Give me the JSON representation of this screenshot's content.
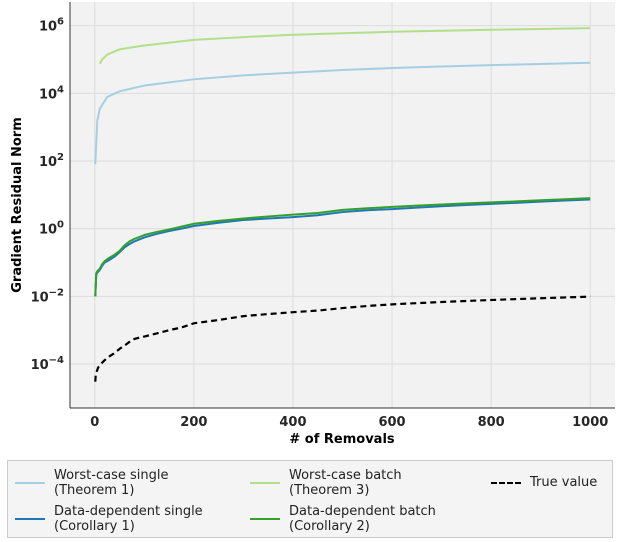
{
  "chart_data": {
    "type": "line",
    "xlabel": "# of Removals",
    "ylabel": "Gradient Residual Norm",
    "yscale": "log",
    "xlim": [
      -50,
      1050
    ],
    "ylim_log10": [
      -5.3,
      6.7
    ],
    "grid": true,
    "x_ticks": [
      "0",
      "200",
      "400",
      "600",
      "800",
      "1000"
    ],
    "y_ticks": [
      {
        "base": "10",
        "exp": "6"
      },
      {
        "base": "10",
        "exp": "4"
      },
      {
        "base": "10",
        "exp": "2"
      },
      {
        "base": "10",
        "exp": "0"
      },
      {
        "base": "10",
        "exp": "−2"
      },
      {
        "base": "10",
        "exp": "−4"
      }
    ],
    "legend_position": "bottom",
    "series": [
      {
        "name": "Worst-case single (Theorem 1)",
        "color": "#a6cee3",
        "style": "solid",
        "x": [
          1,
          5,
          10,
          25,
          50,
          100,
          200,
          300,
          400,
          500,
          600,
          700,
          800,
          900,
          1000
        ],
        "y": [
          80,
          1500,
          3500,
          7800,
          11500,
          17000,
          26000,
          34000,
          41000,
          49000,
          56000,
          62000,
          68000,
          74000,
          80000
        ]
      },
      {
        "name": "Worst-case batch (Theorem 3)",
        "color": "#b2df8a",
        "style": "solid",
        "x": [
          10,
          15,
          25,
          50,
          100,
          200,
          300,
          400,
          500,
          600,
          700,
          800,
          900,
          1000
        ],
        "y": [
          75000,
          100000,
          140000,
          200000,
          260000,
          380000,
          460000,
          540000,
          600000,
          660000,
          710000,
          760000,
          800000,
          850000
        ]
      },
      {
        "name": "Data-dependent single (Corollary 1)",
        "color": "#1f78b4",
        "style": "solid",
        "x": [
          1,
          3,
          5,
          10,
          15,
          20,
          30,
          40,
          50,
          60,
          70,
          80,
          100,
          125,
          150,
          175,
          200,
          250,
          300,
          350,
          400,
          450,
          500,
          550,
          600,
          650,
          700,
          750,
          800,
          850,
          900,
          950,
          1000
        ],
        "y": [
          0.01,
          0.045,
          0.05,
          0.06,
          0.08,
          0.1,
          0.12,
          0.15,
          0.2,
          0.28,
          0.35,
          0.42,
          0.55,
          0.7,
          0.85,
          1.0,
          1.2,
          1.5,
          1.8,
          2.0,
          2.2,
          2.5,
          3.1,
          3.5,
          3.8,
          4.2,
          4.6,
          5.0,
          5.4,
          5.8,
          6.3,
          6.8,
          7.3
        ]
      },
      {
        "name": "Data-dependent batch (Corollary 2)",
        "color": "#33a02c",
        "style": "solid",
        "x": [
          1,
          3,
          5,
          10,
          15,
          20,
          30,
          40,
          50,
          60,
          70,
          80,
          100,
          125,
          150,
          175,
          200,
          250,
          300,
          350,
          400,
          450,
          500,
          550,
          600,
          650,
          700,
          750,
          800,
          850,
          900,
          950,
          1000
        ],
        "y": [
          0.01,
          0.048,
          0.055,
          0.065,
          0.09,
          0.11,
          0.14,
          0.17,
          0.22,
          0.32,
          0.42,
          0.5,
          0.65,
          0.8,
          0.95,
          1.15,
          1.4,
          1.7,
          2.0,
          2.3,
          2.6,
          2.9,
          3.6,
          4.0,
          4.4,
          4.8,
          5.2,
          5.6,
          6.0,
          6.4,
          6.9,
          7.4,
          8.0
        ]
      },
      {
        "name": "True value",
        "color": "#000000",
        "style": "dashed",
        "x": [
          1,
          2,
          4,
          7,
          10,
          15,
          20,
          25,
          30,
          40,
          50,
          60,
          70,
          80,
          90,
          100,
          125,
          150,
          175,
          200,
          250,
          300,
          350,
          400,
          450,
          500,
          550,
          600,
          650,
          700,
          750,
          800,
          850,
          900,
          950,
          1000
        ],
        "y": [
          3e-05,
          5e-05,
          6e-05,
          8e-05,
          9e-05,
          0.00011,
          0.00013,
          0.00015,
          0.00017,
          0.00021,
          0.00028,
          0.00035,
          0.00045,
          0.00055,
          0.0006,
          0.00065,
          0.0008,
          0.001,
          0.0012,
          0.0016,
          0.002,
          0.0026,
          0.003,
          0.0034,
          0.0038,
          0.0045,
          0.0052,
          0.0058,
          0.0063,
          0.0068,
          0.0073,
          0.0078,
          0.0083,
          0.0088,
          0.0093,
          0.0098
        ]
      }
    ]
  },
  "legend": {
    "items": [
      {
        "lines": [
          "Worst-case single",
          "(Theorem 1)"
        ],
        "color": "#a6cee3",
        "style": "solid"
      },
      {
        "lines": [
          "Worst-case batch",
          "(Theorem 3)"
        ],
        "color": "#b2df8a",
        "style": "solid"
      },
      {
        "lines": [
          "True value"
        ],
        "color": "#000000",
        "style": "dashed"
      },
      {
        "lines": [
          "Data-dependent single",
          "(Corollary 1)"
        ],
        "color": "#1f78b4",
        "style": "solid"
      },
      {
        "lines": [
          "Data-dependent batch",
          "(Corollary 2)"
        ],
        "color": "#33a02c",
        "style": "solid"
      }
    ]
  }
}
